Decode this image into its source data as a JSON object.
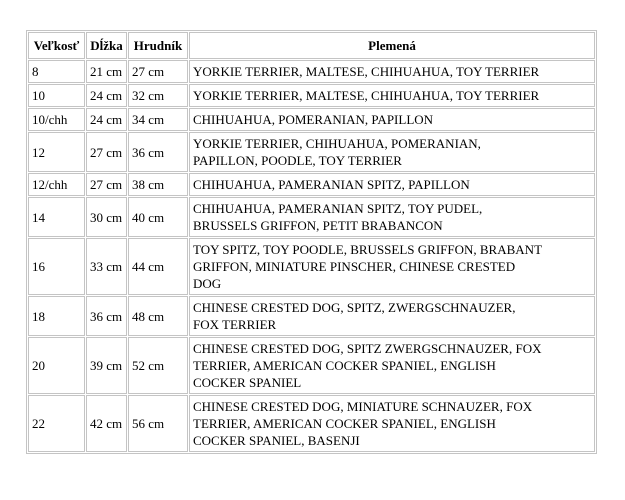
{
  "table": {
    "border_color": "#c4c4c4",
    "text_color": "#000000",
    "background_color": "#ffffff",
    "columns": [
      {
        "key": "size",
        "label": "Veľkosť"
      },
      {
        "key": "length",
        "label": "Dĺžka"
      },
      {
        "key": "chest",
        "label": "Hrudník"
      },
      {
        "key": "breeds",
        "label": "Plemená"
      }
    ],
    "rows": [
      {
        "size": "8",
        "length": "21 cm",
        "chest": "27 cm",
        "breeds": "YORKIE TERRIER, MALTESE, CHIHUAHUA, TOY TERRIER"
      },
      {
        "size": "10",
        "length": "24 cm",
        "chest": "32 cm",
        "breeds": "YORKIE TERRIER, MALTESE, CHIHUAHUA, TOY TERRIER"
      },
      {
        "size": "10/chh",
        "length": "24 cm",
        "chest": "34 cm",
        "breeds": "CHIHUAHUA, POMERANIAN, PAPILLON"
      },
      {
        "size": "12",
        "length": "27 cm",
        "chest": "36 cm",
        "breeds": "YORKIE TERRIER, CHIHUAHUA, POMERANIAN,\nPAPILLON, POODLE, TOY TERRIER"
      },
      {
        "size": "12/chh",
        "length": "27 cm",
        "chest": "38 cm",
        "breeds": "CHIHUAHUA, PAMERANIAN SPITZ, PAPILLON"
      },
      {
        "size": "14",
        "length": "30 cm",
        "chest": "40 cm",
        "breeds": "CHIHUAHUA, PAMERANIAN SPITZ, TOY PUDEL,\nBRUSSELS GRIFFON, PETIT BRABANCON"
      },
      {
        "size": "16",
        "length": "33 cm",
        "chest": "44 cm",
        "breeds": "TOY SPITZ, TOY POODLE, BRUSSELS GRIFFON, BRABANT\nGRIFFON, MINIATURE PINSCHER, CHINESE CRESTED\nDOG"
      },
      {
        "size": "18",
        "length": "36 cm",
        "chest": "48 cm",
        "breeds": "CHINESE CRESTED DOG, SPITZ, ZWERGSCHNAUZER,\nFOX TERRIER"
      },
      {
        "size": "20",
        "length": "39 cm",
        "chest": "52 cm",
        "breeds": "CHINESE CRESTED DOG, SPITZ ZWERGSCHNAUZER, FOX\nTERRIER, AMERICAN COCKER SPANIEL, ENGLISH\nCOCKER SPANIEL"
      },
      {
        "size": "22",
        "length": "42 cm",
        "chest": "56 cm",
        "breeds": "CHINESE CRESTED DOG, MINIATURE SCHNAUZER, FOX\nTERRIER, AMERICAN COCKER SPANIEL, ENGLISH\nCOCKER SPANIEL, BASENJI"
      }
    ]
  }
}
